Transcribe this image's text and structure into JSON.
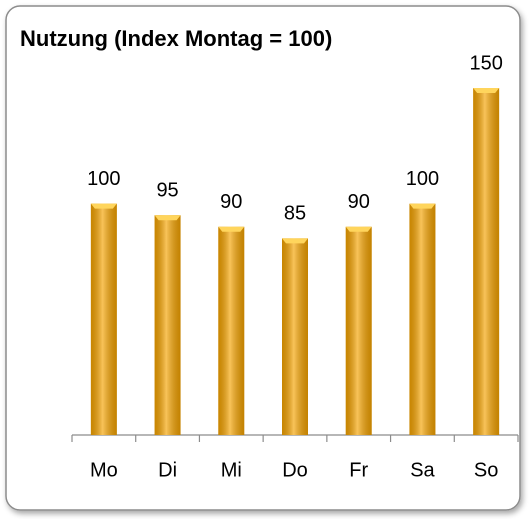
{
  "chart_data": {
    "type": "bar",
    "title": "Nutzung (Index Montag = 100)",
    "categories": [
      "Mo",
      "Di",
      "Mi",
      "Do",
      "Fr",
      "Sa",
      "So"
    ],
    "values": [
      100,
      95,
      90,
      85,
      90,
      100,
      150
    ],
    "color": "#f5a300"
  }
}
